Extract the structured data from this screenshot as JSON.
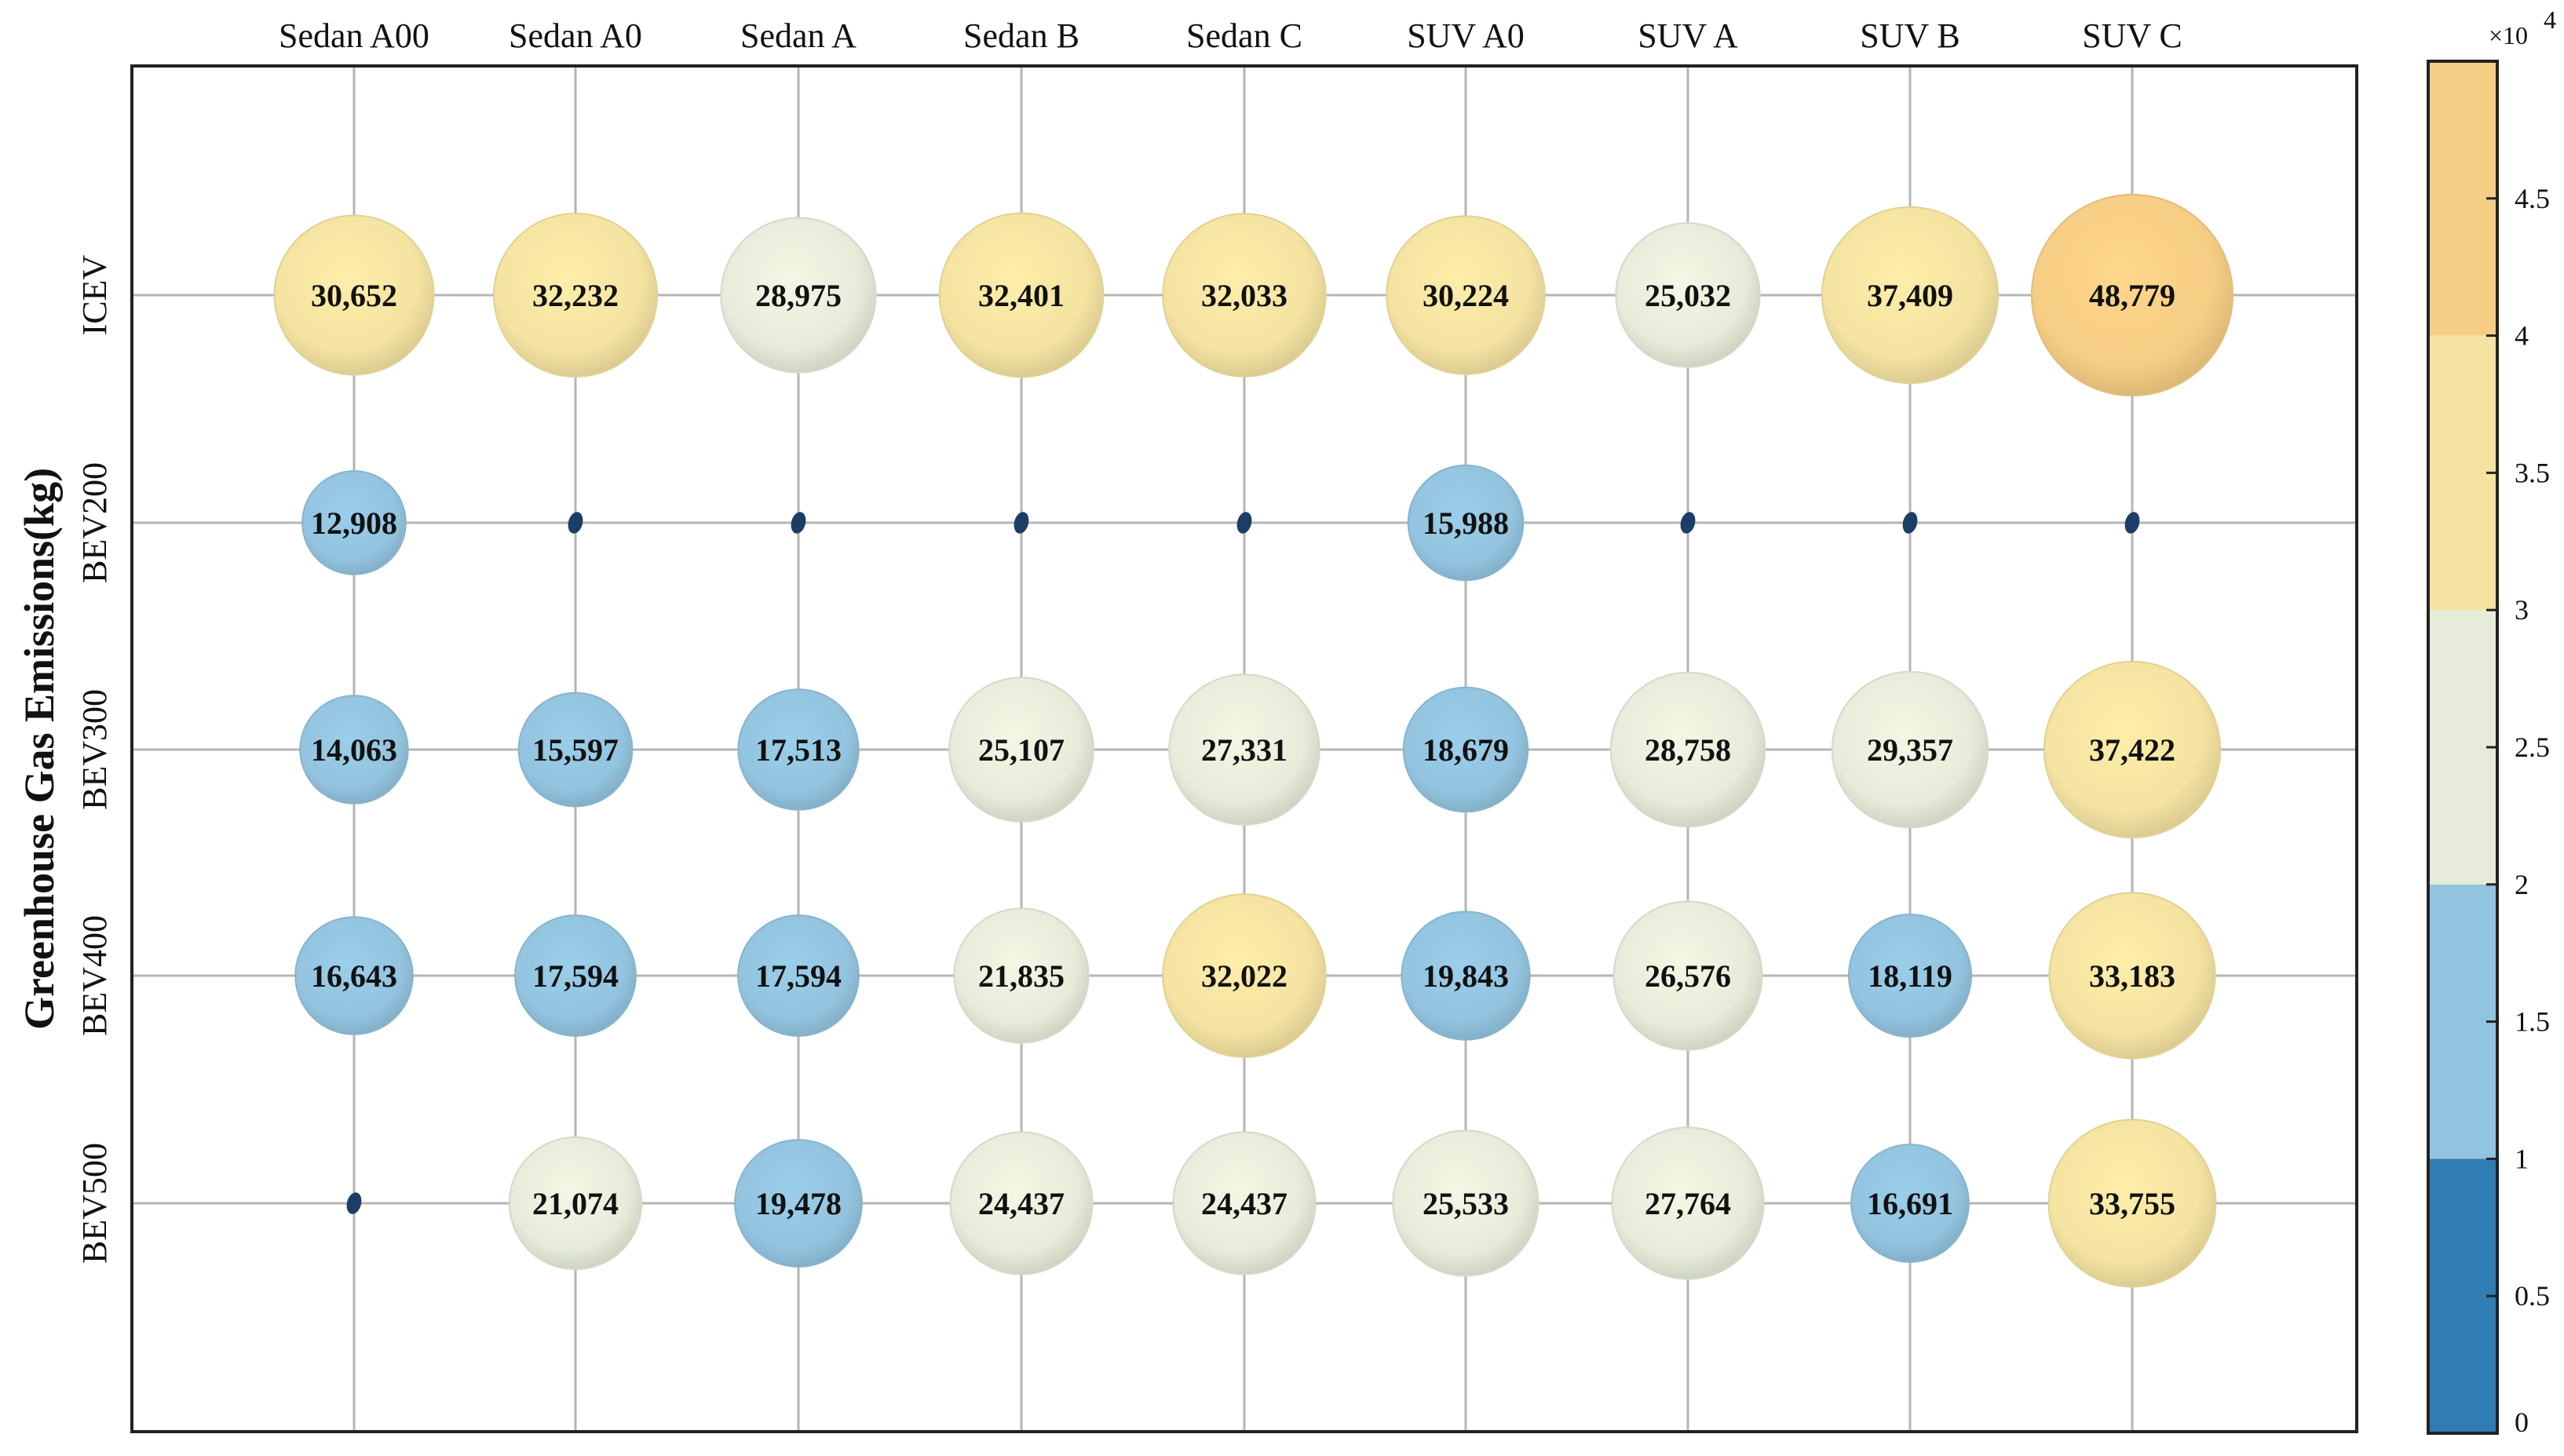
{
  "chart_data": {
    "type": "bubble",
    "title": "",
    "ylabel": "Greenhouse Gas Emissions(kg)",
    "columns": [
      "Sedan A00",
      "Sedan A0",
      "Sedan A",
      "Sedan B",
      "Sedan C",
      "SUV A0",
      "SUV A",
      "SUV B",
      "SUV C"
    ],
    "rows": [
      "ICEV",
      "BEV200",
      "BEV300",
      "BEV400",
      "BEV500"
    ],
    "values": [
      [
        30652,
        32232,
        28975,
        32401,
        32033,
        30224,
        25032,
        37409,
        48779
      ],
      [
        12908,
        null,
        null,
        null,
        null,
        15988,
        null,
        null,
        null
      ],
      [
        14063,
        15597,
        17513,
        25107,
        27331,
        18679,
        28758,
        29357,
        37422
      ],
      [
        16643,
        17594,
        17594,
        21835,
        32022,
        19843,
        26576,
        18119,
        33183
      ],
      [
        null,
        21074,
        19478,
        24437,
        24437,
        25533,
        27764,
        16691,
        33755
      ]
    ],
    "labels": [
      [
        "30,652",
        "32,232",
        "28,975",
        "32,401",
        "32,033",
        "30,224",
        "25,032",
        "37,409",
        "48,779"
      ],
      [
        "12,908",
        "",
        "",
        "",
        "",
        "15,988",
        "",
        "",
        ""
      ],
      [
        "14,063",
        "15,597",
        "17,513",
        "25,107",
        "27,331",
        "18,679",
        "28,758",
        "29,357",
        "37,422"
      ],
      [
        "16,643",
        "17,594",
        "17,594",
        "21,835",
        "32,022",
        "19,843",
        "26,576",
        "18,119",
        "33,183"
      ],
      [
        "",
        "21,074",
        "19,478",
        "24,437",
        "24,437",
        "25,533",
        "27,764",
        "16,691",
        "33,755"
      ]
    ],
    "colorbar": {
      "range": [
        0,
        5
      ],
      "exponent_label": "×10",
      "exponent_power": "4",
      "ticks": [
        0,
        0.5,
        1,
        1.5,
        2,
        2.5,
        3,
        3.5,
        4,
        4.5
      ],
      "tick_labels": [
        "0",
        "0.5",
        "1",
        "1.5",
        "2",
        "2.5",
        "3",
        "3.5",
        "4",
        "4.5"
      ],
      "bands": [
        {
          "from": 0,
          "to": 1,
          "color": "#2f7db3"
        },
        {
          "from": 1,
          "to": 2,
          "color": "#93c4df"
        },
        {
          "from": 2,
          "to": 3,
          "color": "#e6ecd9"
        },
        {
          "from": 3,
          "to": 4,
          "color": "#f4e3a1"
        },
        {
          "from": 4,
          "to": 5,
          "color": "#f6cd84"
        }
      ]
    },
    "grid": true
  }
}
